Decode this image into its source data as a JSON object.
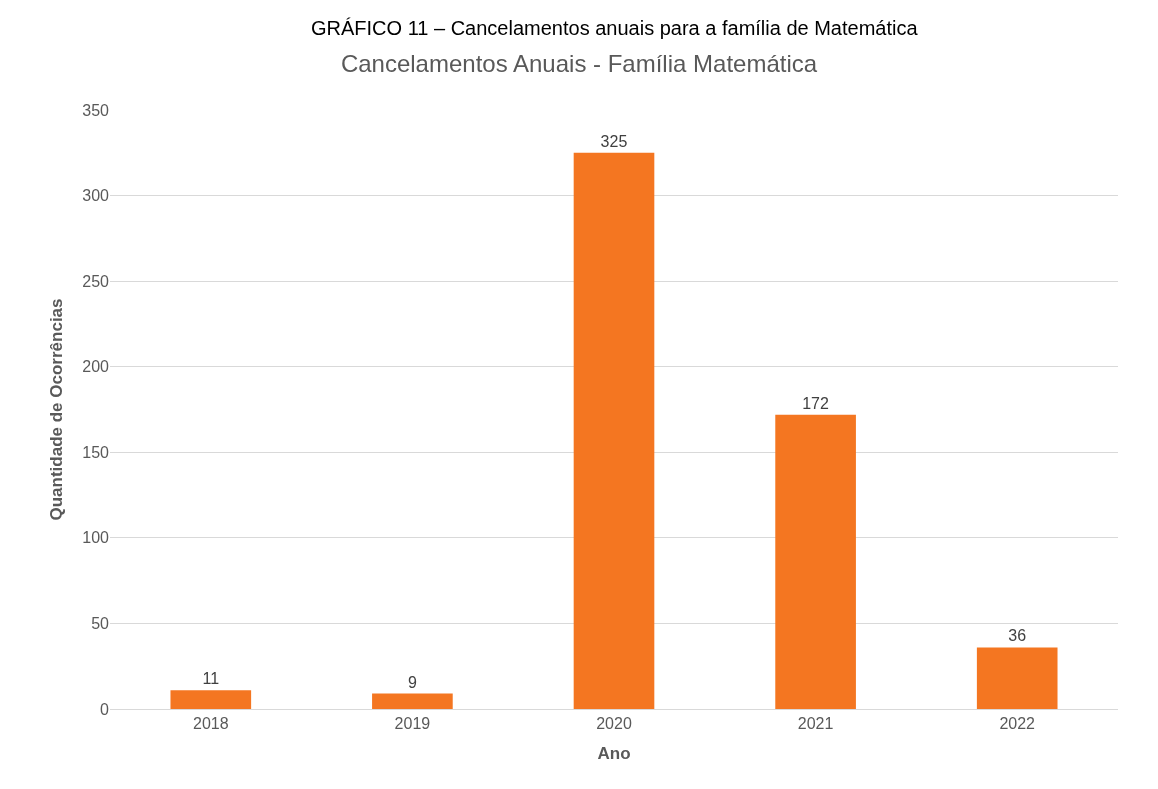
{
  "chart_data": {
    "type": "bar",
    "title": "Cancelamentos Anuais - Família Matemática",
    "xlabel": "Ano",
    "ylabel": "Quantidade de Ocorrências",
    "annotations": [
      "GRÁFICO 11 – Cancelamentos anuais para a família de Matemática"
    ],
    "categories": [
      "2018",
      "2019",
      "2020",
      "2021",
      "2022"
    ],
    "values": [
      11,
      9,
      325,
      172,
      36
    ],
    "color": "#f47621",
    "ylim": [
      0,
      350
    ],
    "yticks": [
      0,
      50,
      100,
      150,
      200,
      250,
      300,
      350
    ],
    "grid": "y",
    "data_labels": true,
    "legend": false
  }
}
